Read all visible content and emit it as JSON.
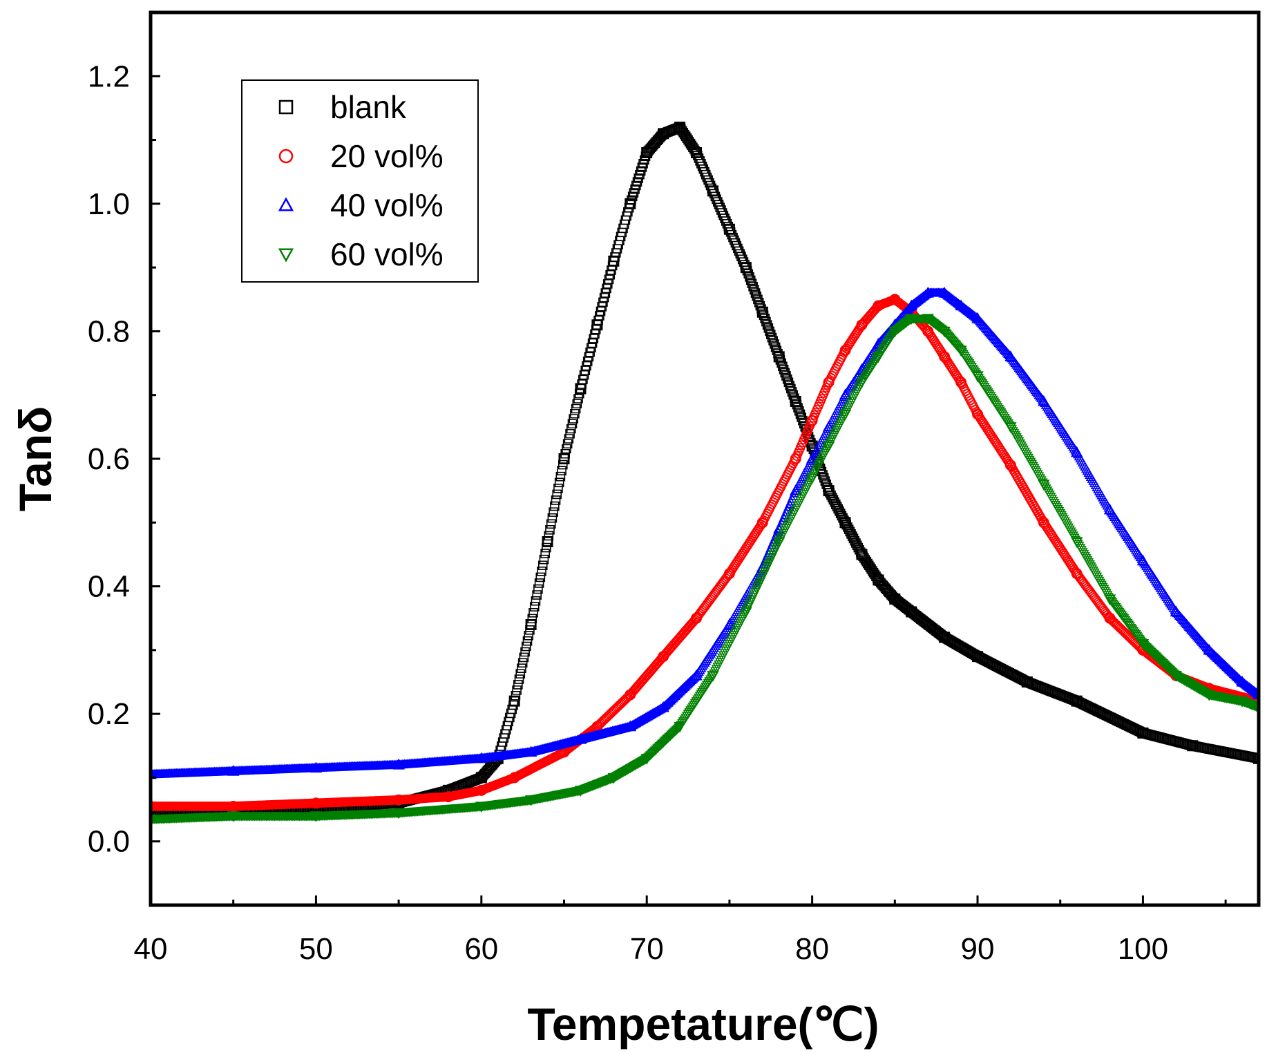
{
  "chart_data": {
    "type": "scatter",
    "title": "",
    "xlabel": "Tempetature(℃)",
    "ylabel": "Tanδ",
    "xlim": [
      40,
      107
    ],
    "ylim": [
      -0.1,
      1.3
    ],
    "xticks": [
      40,
      50,
      60,
      70,
      80,
      90,
      100
    ],
    "yticks": [
      "0.0",
      "0.2",
      "0.4",
      "0.6",
      "0.8",
      "1.0",
      "1.2"
    ],
    "grid": false,
    "legend_position": "top-left",
    "series": [
      {
        "name": "blank",
        "marker": "square",
        "color": "#000000",
        "points": [
          [
            40,
            0.04
          ],
          [
            45,
            0.045
          ],
          [
            50,
            0.05
          ],
          [
            55,
            0.06
          ],
          [
            58,
            0.08
          ],
          [
            60,
            0.1
          ],
          [
            61,
            0.13
          ],
          [
            62,
            0.22
          ],
          [
            63,
            0.34
          ],
          [
            64,
            0.47
          ],
          [
            65,
            0.6
          ],
          [
            66,
            0.71
          ],
          [
            67,
            0.81
          ],
          [
            68,
            0.91
          ],
          [
            69,
            1.0
          ],
          [
            70,
            1.08
          ],
          [
            71,
            1.11
          ],
          [
            72,
            1.12
          ],
          [
            73,
            1.08
          ],
          [
            74,
            1.02
          ],
          [
            75,
            0.96
          ],
          [
            76,
            0.9
          ],
          [
            77,
            0.83
          ],
          [
            78,
            0.76
          ],
          [
            79,
            0.69
          ],
          [
            80,
            0.62
          ],
          [
            81,
            0.55
          ],
          [
            82,
            0.5
          ],
          [
            83,
            0.45
          ],
          [
            84,
            0.41
          ],
          [
            85,
            0.38
          ],
          [
            86,
            0.36
          ],
          [
            88,
            0.32
          ],
          [
            90,
            0.29
          ],
          [
            93,
            0.25
          ],
          [
            96,
            0.22
          ],
          [
            100,
            0.17
          ],
          [
            103,
            0.15
          ],
          [
            107,
            0.13
          ]
        ]
      },
      {
        "name": "20 vol%",
        "marker": "circle",
        "color": "#ff0000",
        "points": [
          [
            40,
            0.055
          ],
          [
            45,
            0.055
          ],
          [
            50,
            0.06
          ],
          [
            55,
            0.065
          ],
          [
            58,
            0.07
          ],
          [
            60,
            0.08
          ],
          [
            62,
            0.1
          ],
          [
            65,
            0.14
          ],
          [
            67,
            0.18
          ],
          [
            69,
            0.23
          ],
          [
            71,
            0.29
          ],
          [
            73,
            0.35
          ],
          [
            75,
            0.42
          ],
          [
            77,
            0.5
          ],
          [
            79,
            0.6
          ],
          [
            80,
            0.66
          ],
          [
            81,
            0.72
          ],
          [
            82,
            0.77
          ],
          [
            83,
            0.81
          ],
          [
            84,
            0.84
          ],
          [
            85,
            0.85
          ],
          [
            86,
            0.83
          ],
          [
            87,
            0.8
          ],
          [
            88,
            0.76
          ],
          [
            89,
            0.72
          ],
          [
            90,
            0.67
          ],
          [
            92,
            0.59
          ],
          [
            94,
            0.5
          ],
          [
            96,
            0.42
          ],
          [
            98,
            0.35
          ],
          [
            100,
            0.3
          ],
          [
            102,
            0.26
          ],
          [
            104,
            0.24
          ],
          [
            107,
            0.22
          ]
        ]
      },
      {
        "name": "40 vol%",
        "marker": "triangle-up",
        "color": "#0000ff",
        "points": [
          [
            40,
            0.105
          ],
          [
            45,
            0.11
          ],
          [
            50,
            0.115
          ],
          [
            55,
            0.12
          ],
          [
            60,
            0.13
          ],
          [
            63,
            0.14
          ],
          [
            66,
            0.16
          ],
          [
            69,
            0.18
          ],
          [
            71,
            0.21
          ],
          [
            73,
            0.26
          ],
          [
            75,
            0.34
          ],
          [
            77,
            0.43
          ],
          [
            78,
            0.49
          ],
          [
            79,
            0.55
          ],
          [
            80,
            0.6
          ],
          [
            81,
            0.65
          ],
          [
            82,
            0.7
          ],
          [
            83,
            0.74
          ],
          [
            84,
            0.78
          ],
          [
            85,
            0.81
          ],
          [
            86,
            0.84
          ],
          [
            87,
            0.86
          ],
          [
            88,
            0.86
          ],
          [
            89,
            0.84
          ],
          [
            90,
            0.82
          ],
          [
            92,
            0.76
          ],
          [
            94,
            0.69
          ],
          [
            96,
            0.61
          ],
          [
            98,
            0.52
          ],
          [
            100,
            0.44
          ],
          [
            102,
            0.36
          ],
          [
            104,
            0.3
          ],
          [
            106,
            0.25
          ],
          [
            107,
            0.23
          ]
        ]
      },
      {
        "name": "60 vol%",
        "marker": "triangle-down",
        "color": "#008000",
        "points": [
          [
            40,
            0.035
          ],
          [
            45,
            0.04
          ],
          [
            50,
            0.04
          ],
          [
            55,
            0.045
          ],
          [
            60,
            0.055
          ],
          [
            63,
            0.065
          ],
          [
            66,
            0.08
          ],
          [
            68,
            0.1
          ],
          [
            70,
            0.13
          ],
          [
            72,
            0.18
          ],
          [
            74,
            0.26
          ],
          [
            76,
            0.36
          ],
          [
            78,
            0.47
          ],
          [
            80,
            0.57
          ],
          [
            81,
            0.62
          ],
          [
            82,
            0.67
          ],
          [
            83,
            0.72
          ],
          [
            84,
            0.76
          ],
          [
            85,
            0.8
          ],
          [
            86,
            0.82
          ],
          [
            87,
            0.82
          ],
          [
            88,
            0.8
          ],
          [
            89,
            0.77
          ],
          [
            90,
            0.73
          ],
          [
            92,
            0.65
          ],
          [
            94,
            0.56
          ],
          [
            96,
            0.47
          ],
          [
            98,
            0.38
          ],
          [
            100,
            0.31
          ],
          [
            102,
            0.26
          ],
          [
            104,
            0.23
          ],
          [
            106,
            0.22
          ],
          [
            107,
            0.21
          ]
        ]
      }
    ]
  }
}
